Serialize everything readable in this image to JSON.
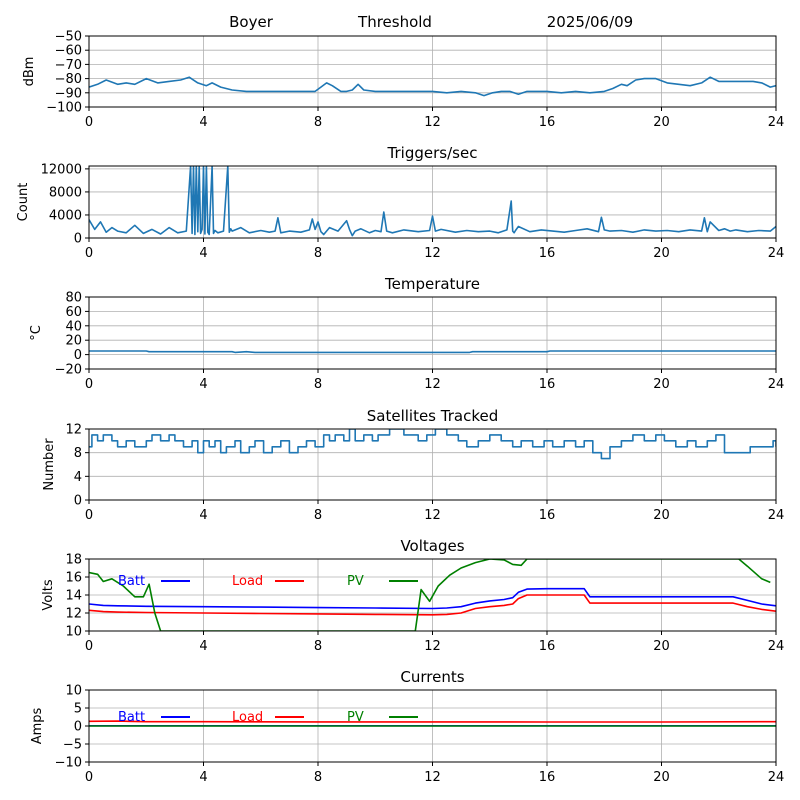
{
  "header": {
    "station": "Boyer",
    "mode": "Threshold",
    "date": "2025/06/09"
  },
  "chart_data": [
    {
      "id": "rssi",
      "type": "line",
      "title": "",
      "xlabel": "",
      "ylabel": "dBm",
      "xlim": [
        0,
        24
      ],
      "ylim": [
        -100,
        -50
      ],
      "xticks": [
        0,
        4,
        8,
        12,
        16,
        20,
        24
      ],
      "yticks": [
        -100,
        -90,
        -80,
        -70,
        -60,
        -50
      ],
      "grid": true,
      "series": [
        {
          "color": "#1f77b4",
          "x": [
            0,
            0.3,
            0.6,
            1.0,
            1.3,
            1.6,
            2.0,
            2.4,
            2.8,
            3.2,
            3.5,
            3.8,
            4.1,
            4.3,
            4.6,
            5.0,
            5.5,
            6.0,
            6.5,
            7.0,
            7.5,
            7.9,
            8.1,
            8.3,
            8.5,
            8.8,
            9.0,
            9.2,
            9.4,
            9.6,
            10.0,
            11.0,
            12.0,
            12.5,
            13.0,
            13.5,
            13.8,
            14.1,
            14.4,
            14.7,
            15.0,
            15.3,
            15.6,
            16.0,
            16.5,
            17.0,
            17.5,
            18.0,
            18.3,
            18.6,
            18.8,
            19.1,
            19.4,
            19.8,
            20.2,
            20.6,
            21.0,
            21.4,
            21.7,
            22.0,
            22.4,
            22.8,
            23.2,
            23.5,
            23.8,
            24.0
          ],
          "y": [
            -86,
            -84,
            -81,
            -84,
            -83,
            -84,
            -80,
            -83,
            -82,
            -81,
            -79,
            -83,
            -85,
            -83,
            -86,
            -88,
            -89,
            -89,
            -89,
            -89,
            -89,
            -89,
            -86,
            -83,
            -85,
            -89,
            -89,
            -88,
            -84,
            -88,
            -89,
            -89,
            -89,
            -90,
            -89,
            -90,
            -92,
            -90,
            -89,
            -89,
            -91,
            -89,
            -89,
            -89,
            -90,
            -89,
            -90,
            -89,
            -87,
            -84,
            -85,
            -81,
            -80,
            -80,
            -83,
            -84,
            -85,
            -83,
            -79,
            -82,
            -82,
            -82,
            -82,
            -83,
            -86,
            -85
          ]
        }
      ]
    },
    {
      "id": "triggers",
      "type": "line",
      "title": "Triggers/sec",
      "xlabel": "",
      "ylabel": "Count",
      "xlim": [
        0,
        24
      ],
      "ylim": [
        0,
        12500
      ],
      "xticks": [
        0,
        4,
        8,
        12,
        16,
        20,
        24
      ],
      "yticks": [
        0,
        4000,
        8000,
        12000
      ],
      "grid": true,
      "series": [
        {
          "color": "#1f77b4",
          "x": [
            0,
            0.2,
            0.4,
            0.6,
            0.8,
            1.0,
            1.3,
            1.6,
            1.9,
            2.2,
            2.5,
            2.8,
            3.1,
            3.4,
            3.55,
            3.6,
            3.65,
            3.7,
            3.75,
            3.8,
            3.85,
            3.9,
            3.95,
            4.0,
            4.05,
            4.1,
            4.15,
            4.2,
            4.3,
            4.35,
            4.4,
            4.5,
            4.7,
            4.85,
            4.9,
            4.95,
            5.0,
            5.3,
            5.6,
            6.0,
            6.3,
            6.5,
            6.6,
            6.7,
            7.0,
            7.4,
            7.7,
            7.8,
            7.9,
            8.0,
            8.1,
            8.2,
            8.4,
            8.7,
            9.0,
            9.1,
            9.2,
            9.3,
            9.5,
            9.8,
            10.0,
            10.2,
            10.3,
            10.4,
            10.6,
            11.0,
            11.5,
            11.9,
            12.0,
            12.1,
            12.3,
            12.8,
            13.2,
            13.6,
            14.0,
            14.3,
            14.6,
            14.75,
            14.8,
            14.85,
            14.9,
            15.0,
            15.4,
            15.8,
            16.2,
            16.6,
            17.0,
            17.4,
            17.8,
            17.9,
            18.0,
            18.2,
            18.6,
            19.0,
            19.4,
            19.8,
            20.2,
            20.6,
            21.0,
            21.4,
            21.5,
            21.6,
            21.7,
            22.0,
            22.2,
            22.4,
            22.6,
            23.0,
            23.4,
            23.8,
            24.0
          ],
          "y": [
            3200,
            1500,
            2800,
            1000,
            1800,
            1200,
            900,
            2200,
            800,
            1500,
            700,
            1800,
            900,
            1200,
            12500,
            800,
            12500,
            600,
            12500,
            1100,
            12500,
            800,
            1500,
            12500,
            700,
            12500,
            1000,
            600,
            12500,
            800,
            1300,
            900,
            1200,
            12500,
            1000,
            1600,
            1200,
            1800,
            900,
            1300,
            1000,
            1200,
            3500,
            900,
            1200,
            1000,
            1400,
            3300,
            1500,
            2800,
            1100,
            600,
            1800,
            1200,
            3000,
            1500,
            400,
            1200,
            1600,
            900,
            1300,
            1100,
            4500,
            1200,
            900,
            1400,
            1100,
            1300,
            3800,
            1200,
            1500,
            1000,
            1300,
            1100,
            1200,
            900,
            1400,
            6400,
            1200,
            900,
            1300,
            2000,
            1100,
            1400,
            1200,
            1000,
            1300,
            1600,
            1100,
            3600,
            1400,
            1200,
            1300,
            1000,
            1400,
            1200,
            1300,
            1100,
            1400,
            1200,
            3500,
            1100,
            2800,
            1300,
            1600,
            1200,
            1400,
            1100,
            1300,
            1200,
            2000
          ]
        }
      ]
    },
    {
      "id": "temperature",
      "type": "line",
      "title": "Temperature",
      "xlabel": "",
      "ylabel": "°C",
      "xlim": [
        0,
        24
      ],
      "ylim": [
        -20,
        80
      ],
      "xticks": [
        0,
        4,
        8,
        12,
        16,
        20,
        24
      ],
      "yticks": [
        -20,
        0,
        20,
        40,
        60,
        80
      ],
      "grid": true,
      "series": [
        {
          "color": "#1f77b4",
          "x": [
            0,
            2.0,
            2.1,
            5.0,
            5.1,
            5.5,
            5.8,
            6.0,
            10.0,
            13.3,
            13.4,
            16.0,
            16.1,
            24.0
          ],
          "y": [
            5,
            5,
            4,
            4,
            3,
            4,
            3,
            3,
            3,
            3,
            4,
            4,
            5,
            5
          ]
        }
      ]
    },
    {
      "id": "satellites",
      "type": "line",
      "title": "Satellites Tracked",
      "xlabel": "",
      "ylabel": "Number",
      "xlim": [
        0,
        24
      ],
      "ylim": [
        0,
        12
      ],
      "xticks": [
        0,
        4,
        8,
        12,
        16,
        20,
        24
      ],
      "yticks": [
        0,
        4,
        8,
        12
      ],
      "grid": true,
      "series": [
        {
          "color": "#1f77b4",
          "step": true,
          "x": [
            0,
            0.1,
            0.3,
            0.5,
            0.8,
            1.0,
            1.3,
            1.6,
            2.0,
            2.2,
            2.5,
            2.8,
            3.0,
            3.3,
            3.6,
            3.8,
            4.0,
            4.2,
            4.4,
            4.6,
            4.8,
            5.1,
            5.3,
            5.6,
            5.8,
            6.1,
            6.4,
            6.7,
            7.0,
            7.3,
            7.6,
            7.9,
            8.2,
            8.4,
            8.6,
            8.9,
            9.1,
            9.3,
            9.6,
            9.9,
            10.1,
            10.5,
            11.0,
            11.5,
            11.8,
            12.1,
            12.5,
            12.9,
            13.2,
            13.6,
            14.0,
            14.4,
            14.8,
            15.1,
            15.5,
            15.9,
            16.2,
            16.6,
            17.0,
            17.3,
            17.6,
            17.9,
            18.2,
            18.6,
            19.0,
            19.4,
            19.8,
            20.1,
            20.5,
            20.9,
            21.2,
            21.6,
            21.9,
            22.2,
            22.7,
            23.1,
            23.5,
            23.9,
            24.0
          ],
          "y": [
            9,
            11,
            10,
            11,
            10,
            9,
            10,
            9,
            10,
            11,
            10,
            11,
            10,
            9,
            10,
            8,
            10,
            9,
            10,
            8,
            9,
            10,
            8,
            9,
            10,
            8,
            9,
            10,
            8,
            9,
            10,
            9,
            11,
            10,
            11,
            10,
            12,
            10,
            11,
            10,
            11,
            12,
            11,
            10,
            11,
            12,
            11,
            10,
            9,
            10,
            11,
            10,
            9,
            10,
            9,
            10,
            9,
            10,
            9,
            10,
            8,
            7,
            9,
            10,
            11,
            10,
            11,
            10,
            9,
            10,
            9,
            10,
            11,
            8,
            8,
            9,
            9,
            10,
            9
          ]
        }
      ]
    },
    {
      "id": "voltages",
      "type": "line",
      "title": "Voltages",
      "xlabel": "",
      "ylabel": "Volts",
      "xlim": [
        0,
        24
      ],
      "ylim": [
        10,
        18
      ],
      "xticks": [
        0,
        4,
        8,
        12,
        16,
        20,
        24
      ],
      "yticks": [
        10,
        12,
        14,
        16,
        18
      ],
      "grid": true,
      "legend": "top-left",
      "series": [
        {
          "name": "Batt",
          "color": "#0000ff",
          "x": [
            0,
            0.5,
            1,
            2,
            4,
            6,
            8,
            10,
            12,
            12.5,
            13,
            13.5,
            14,
            14.5,
            14.8,
            15,
            15.3,
            16,
            17,
            17.3,
            17.5,
            18,
            20,
            22,
            22.5,
            23,
            23.5,
            24
          ],
          "y": [
            13.0,
            12.85,
            12.8,
            12.75,
            12.7,
            12.65,
            12.6,
            12.55,
            12.5,
            12.55,
            12.7,
            13.1,
            13.35,
            13.5,
            13.7,
            14.3,
            14.65,
            14.7,
            14.7,
            14.7,
            13.8,
            13.8,
            13.8,
            13.8,
            13.8,
            13.4,
            13.0,
            12.8
          ]
        },
        {
          "name": "Load",
          "color": "#ff0000",
          "x": [
            0,
            0.5,
            1,
            2,
            4,
            6,
            8,
            10,
            12,
            12.5,
            13,
            13.5,
            14,
            14.5,
            14.8,
            15,
            15.3,
            16,
            17,
            17.3,
            17.5,
            18,
            20,
            22,
            22.5,
            23,
            23.5,
            24
          ],
          "y": [
            12.3,
            12.15,
            12.1,
            12.05,
            12.0,
            11.95,
            11.9,
            11.85,
            11.8,
            11.85,
            12.0,
            12.5,
            12.7,
            12.85,
            13.0,
            13.6,
            14.0,
            14.0,
            14.0,
            14.0,
            13.1,
            13.1,
            13.1,
            13.1,
            13.1,
            12.7,
            12.4,
            12.2
          ]
        },
        {
          "name": "PV",
          "color": "#008000",
          "x": [
            0,
            0.3,
            0.5,
            0.8,
            1.2,
            1.6,
            1.9,
            2.1,
            2.3,
            2.5,
            11.4,
            11.6,
            11.9,
            12.2,
            12.6,
            13.0,
            13.5,
            14.0,
            14.5,
            14.8,
            15.1,
            15.3,
            22.7,
            23.0,
            23.5,
            23.8
          ],
          "y": [
            16.5,
            16.3,
            15.5,
            15.8,
            15.0,
            13.8,
            13.8,
            15.2,
            12.0,
            10.0,
            10.0,
            14.6,
            13.3,
            15.0,
            16.2,
            17.0,
            17.6,
            18.0,
            17.9,
            17.4,
            17.3,
            18.0,
            18.0,
            17.2,
            15.8,
            15.4
          ]
        }
      ]
    },
    {
      "id": "currents",
      "type": "line",
      "title": "Currents",
      "xlabel": "",
      "ylabel": "Amps",
      "xlim": [
        0,
        24
      ],
      "ylim": [
        -10,
        10
      ],
      "xticks": [
        0,
        4,
        8,
        12,
        16,
        20,
        24
      ],
      "yticks": [
        -10,
        -5,
        0,
        5,
        10
      ],
      "grid": true,
      "legend": "top-left",
      "series": [
        {
          "name": "Batt",
          "color": "#0000ff",
          "x": [
            0,
            24
          ],
          "y": [
            0.05,
            0.05
          ]
        },
        {
          "name": "Load",
          "color": "#ff0000",
          "x": [
            0,
            1,
            2,
            4,
            8,
            12,
            16,
            20,
            24
          ],
          "y": [
            1.3,
            1.35,
            1.2,
            1.2,
            1.15,
            1.15,
            1.1,
            1.1,
            1.2
          ]
        },
        {
          "name": "PV",
          "color": "#008000",
          "x": [
            0,
            24
          ],
          "y": [
            0,
            0
          ]
        }
      ]
    }
  ]
}
